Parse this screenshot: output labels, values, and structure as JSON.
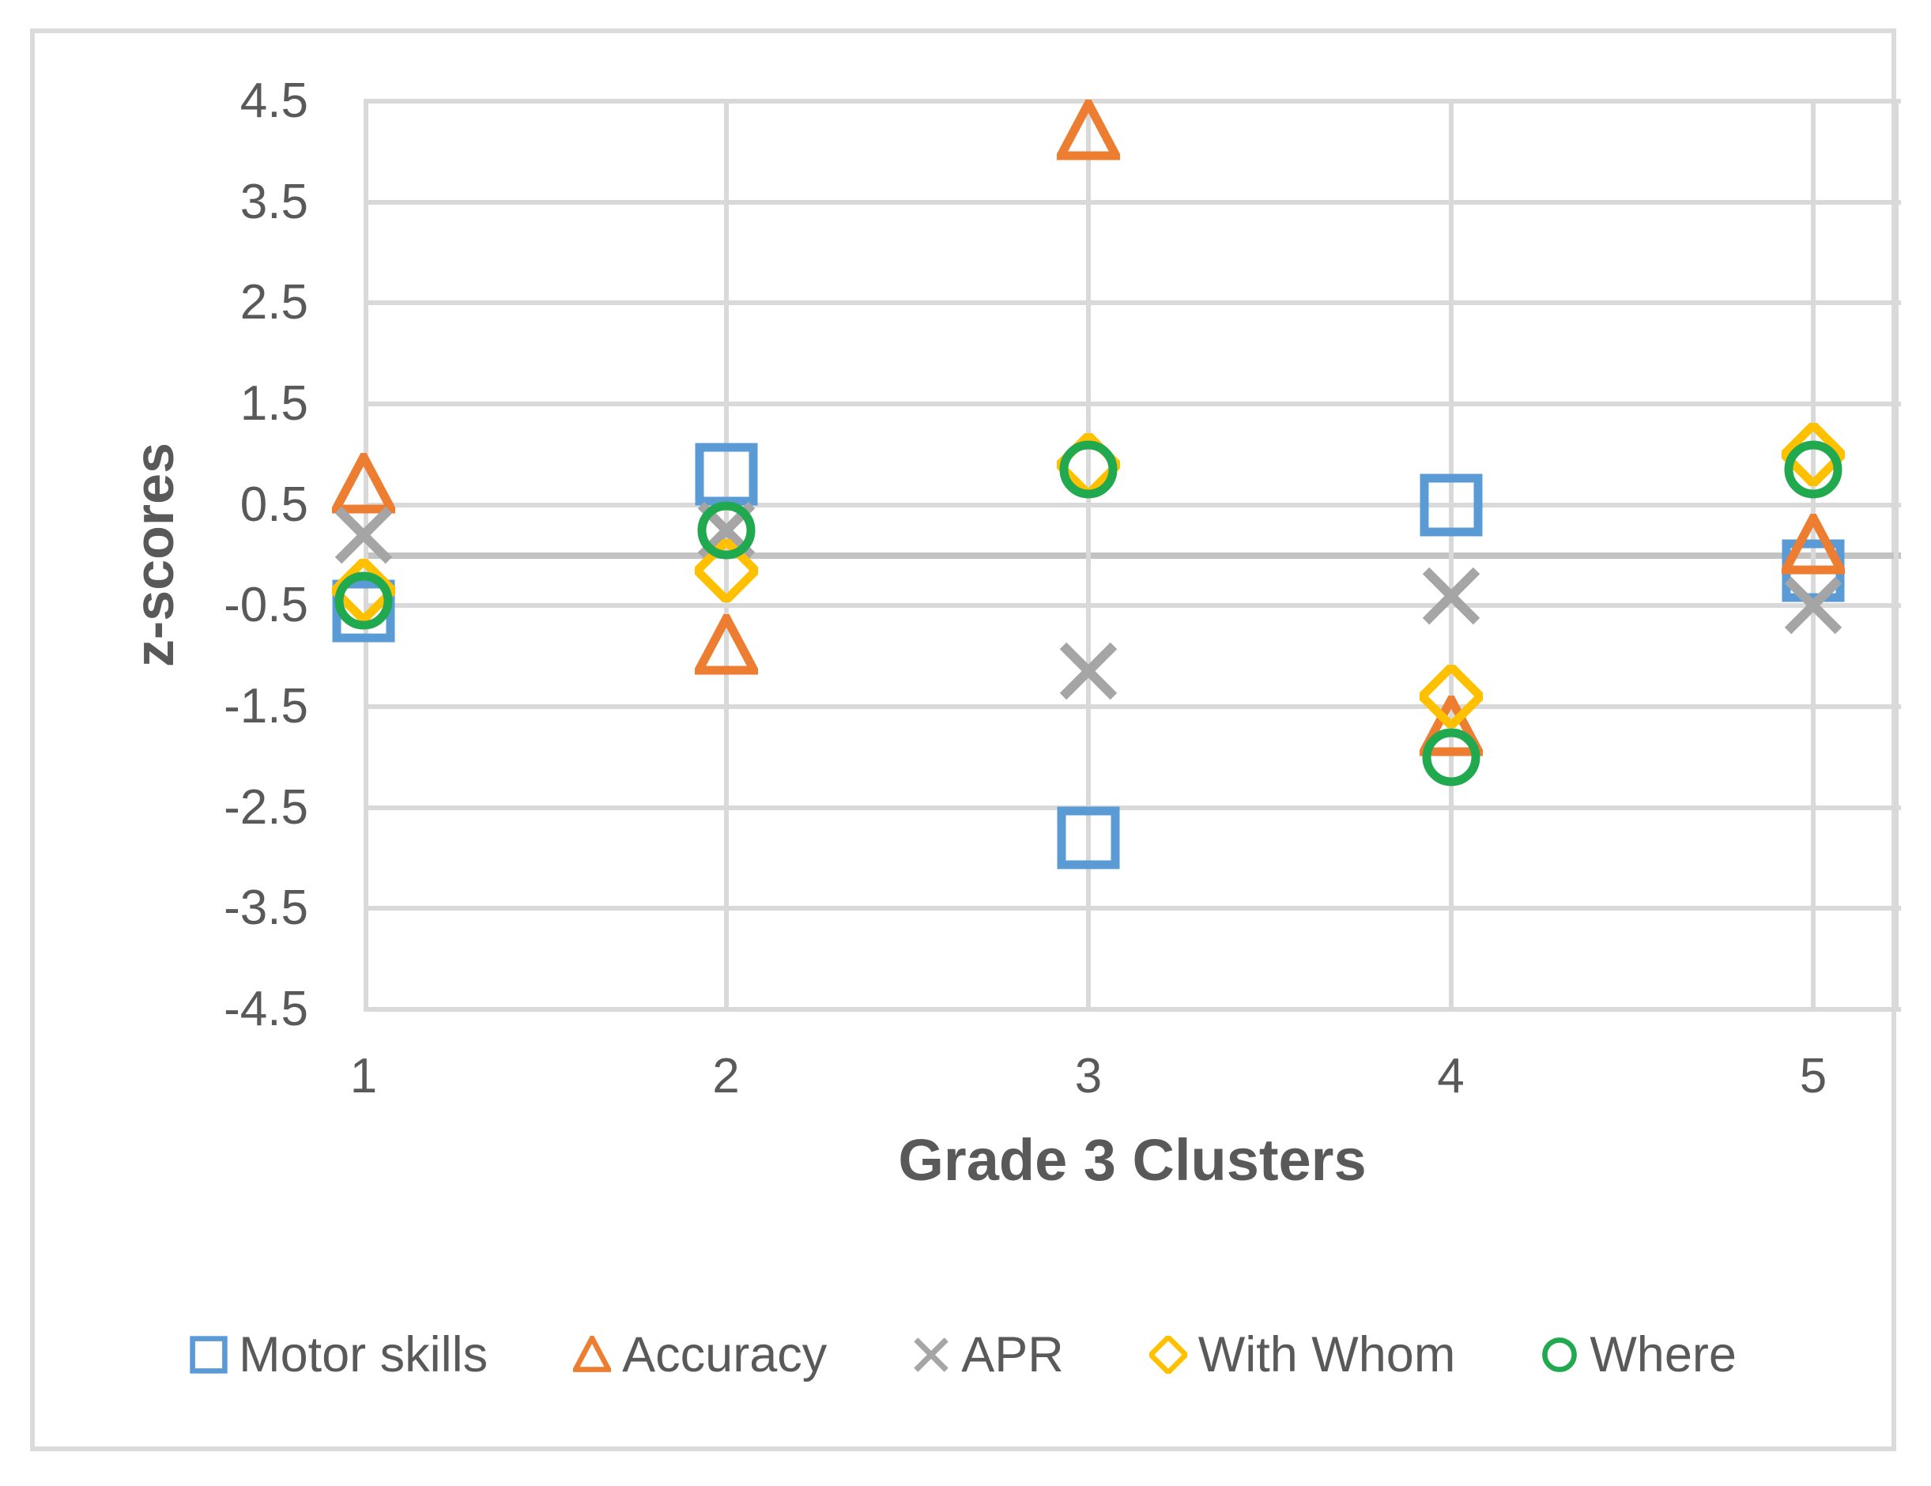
{
  "chart_data": {
    "type": "scatter",
    "title": "",
    "xlabel": "Grade 3 Clusters",
    "ylabel": "z-scores",
    "categories": [
      1,
      2,
      3,
      4,
      5
    ],
    "x_tick_labels": [
      "1",
      "2",
      "3",
      "4",
      "5"
    ],
    "y_ticks": [
      4.5,
      3.5,
      2.5,
      1.5,
      0.5,
      -0.5,
      -1.5,
      -2.5,
      -3.5,
      -4.5
    ],
    "y_tick_labels": [
      "4.5",
      "3.5",
      "2.5",
      "1.5",
      "0.5",
      "-0.5",
      "-1.5",
      "-2.5",
      "-3.5",
      "-4.5"
    ],
    "ylim": [
      -4.5,
      4.5
    ],
    "grid": true,
    "legend_position": "bottom",
    "series": [
      {
        "name": "Motor skills",
        "marker": "square",
        "color": "#5B9BD5",
        "values": [
          -0.55,
          0.8,
          -2.8,
          0.5,
          -0.15
        ]
      },
      {
        "name": "Accuracy",
        "marker": "triangle",
        "color": "#ED7D31",
        "values": [
          0.7,
          -0.9,
          4.2,
          -1.7,
          0.1
        ]
      },
      {
        "name": "APR",
        "marker": "x",
        "color": "#A5A5A5",
        "values": [
          0.2,
          0.25,
          -1.15,
          -0.4,
          -0.5
        ]
      },
      {
        "name": "With Whom",
        "marker": "diamond",
        "color": "#FFC000",
        "values": [
          -0.35,
          -0.15,
          0.9,
          -1.4,
          1.0
        ]
      },
      {
        "name": "Where",
        "marker": "circle",
        "color": "#21A94F",
        "values": [
          -0.45,
          0.25,
          0.85,
          -2.0,
          0.85
        ]
      }
    ]
  },
  "colors": {
    "gridline": "#D9D9D9",
    "zero_axis": "#C3C3C3",
    "text": "#595959",
    "frame_border": "#DBDBDB",
    "background": "#FFFFFF"
  }
}
